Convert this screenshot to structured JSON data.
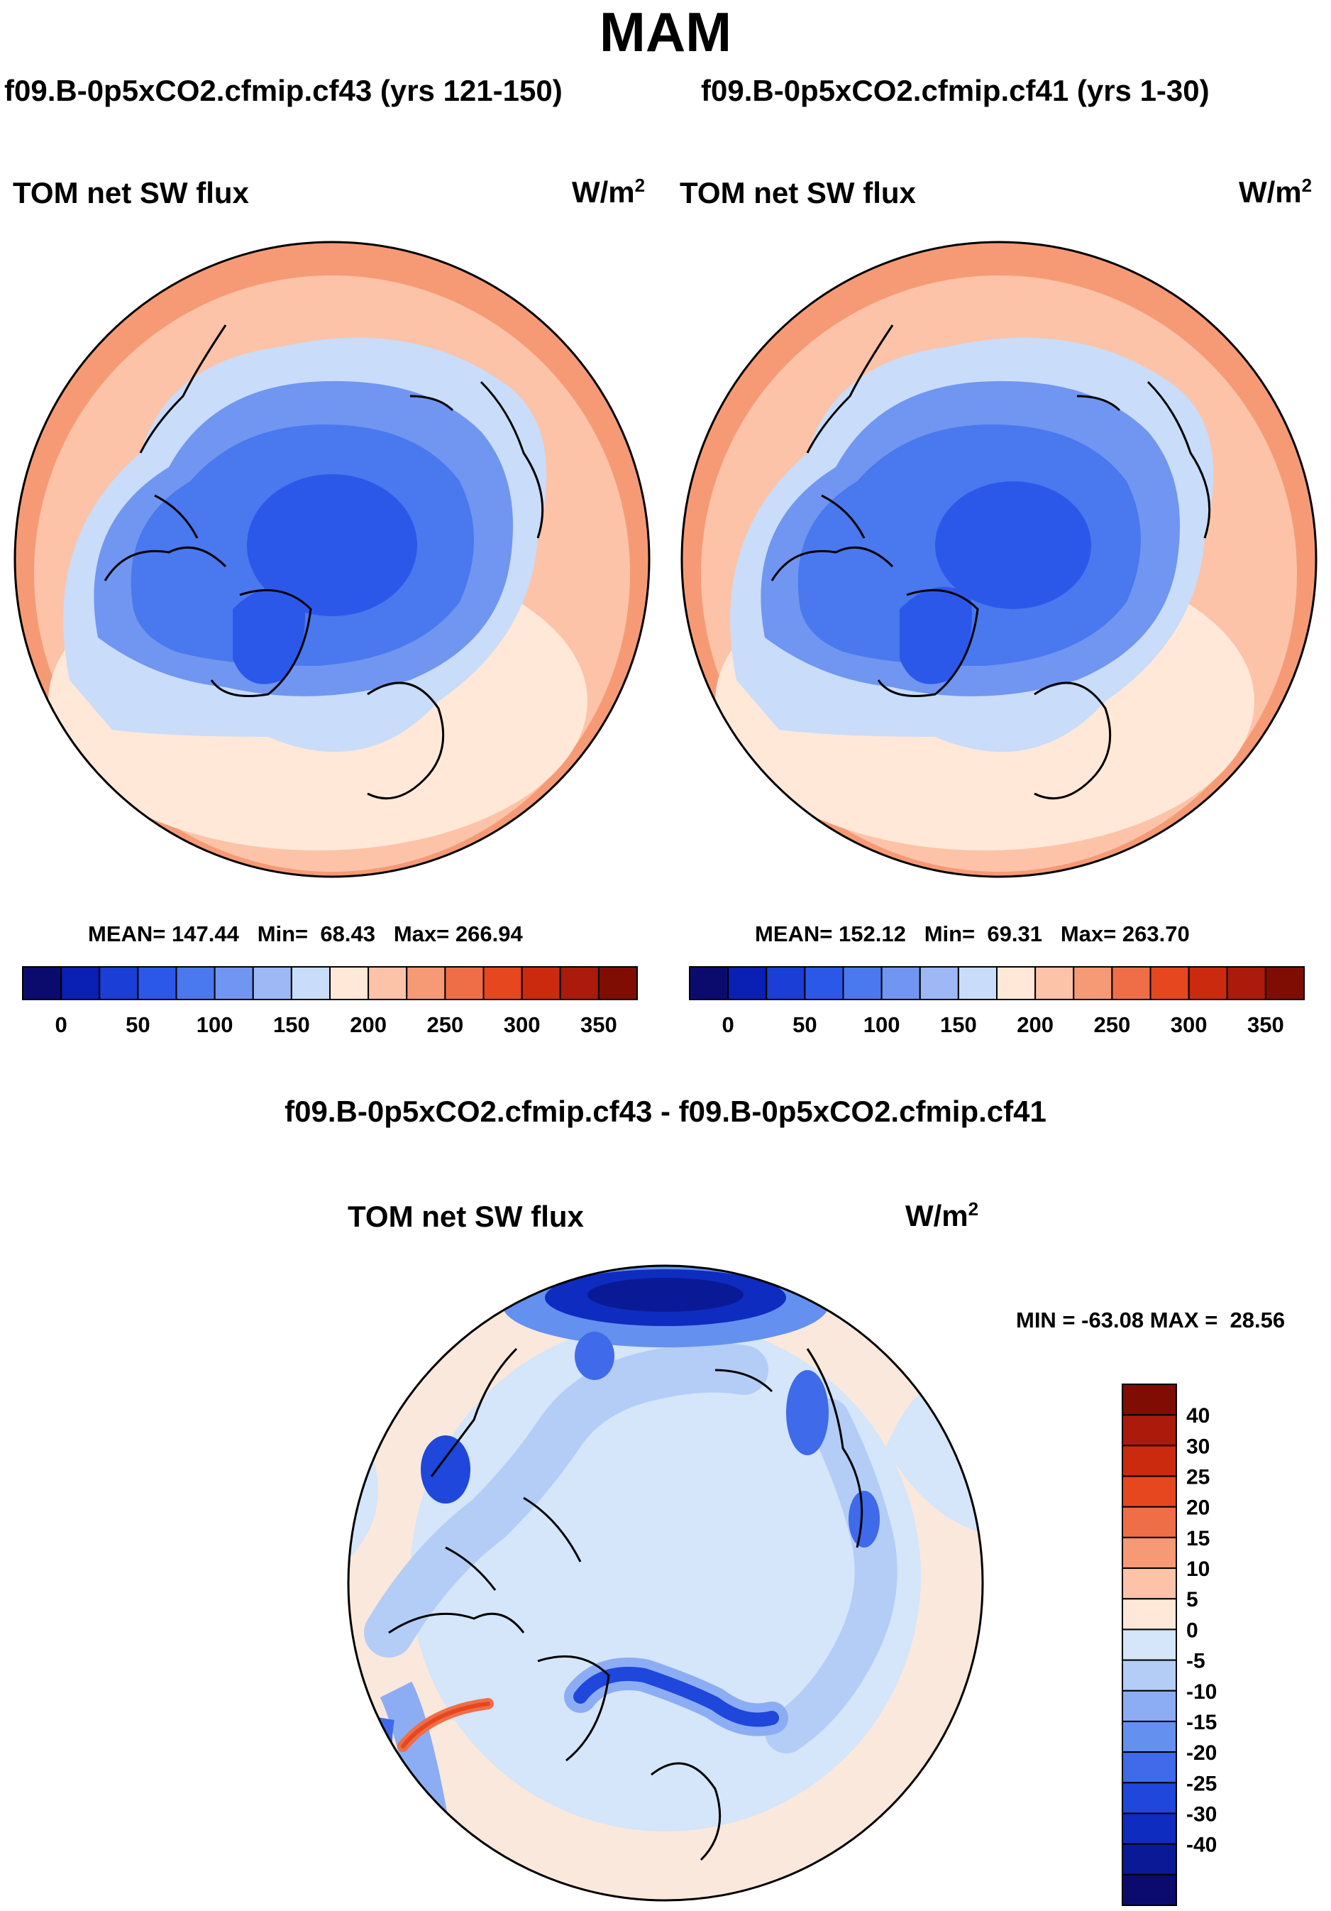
{
  "season": "MAM",
  "panels": [
    {
      "case_title": "f09.B-0p5xCO2.cfmip.cf43 (yrs 121-150)",
      "variable": "TOM net SW flux",
      "units": "W/m",
      "units_sup": "2",
      "stats": {
        "mean_label": "MEAN=",
        "mean": "147.44",
        "min_label": "Min=",
        "min": "68.43",
        "max_label": "Max=",
        "max": "266.94"
      }
    },
    {
      "case_title": "f09.B-0p5xCO2.cfmip.cf41 (yrs 1-30)",
      "variable": "TOM net SW flux",
      "units": "W/m",
      "units_sup": "2",
      "stats": {
        "mean_label": "MEAN=",
        "mean": "152.12",
        "min_label": "Min=",
        "min": "69.31",
        "max_label": "Max=",
        "max": "263.70"
      }
    }
  ],
  "colorbar": {
    "colors": [
      "#0b0b6e",
      "#0a1fb4",
      "#1a3ed6",
      "#2c58ea",
      "#4a78ee",
      "#7096f1",
      "#9db8f5",
      "#c9dcf9",
      "#ffe8d8",
      "#fcc3a8",
      "#f69a76",
      "#ef6e48",
      "#e6471f",
      "#cc2a0f",
      "#ab1a0a",
      "#7f0d04"
    ],
    "ticks": [
      "0",
      "50",
      "100",
      "150",
      "200",
      "250",
      "300",
      "350"
    ]
  },
  "diff": {
    "title": "f09.B-0p5xCO2.cfmip.cf43 - f09.B-0p5xCO2.cfmip.cf41",
    "variable": "TOM net SW flux",
    "units": "W/m",
    "units_sup": "2",
    "minmax": {
      "min_label": "MIN =",
      "min": "-63.08",
      "max_label": "MAX =",
      "max": "28.56"
    },
    "colorbar": {
      "colors": [
        "#7f0d04",
        "#ab1a0a",
        "#cc2a0f",
        "#e6471f",
        "#ef6e48",
        "#f69a76",
        "#fcc3a8",
        "#ffe8d8",
        "#d5e5fa",
        "#b3cdf6",
        "#8cadf3",
        "#6490ef",
        "#3f6aea",
        "#1f47dc",
        "#0f2cc0",
        "#0a1a96",
        "#0b0b6e"
      ],
      "labels": [
        "40",
        "30",
        "25",
        "20",
        "15",
        "10",
        "5",
        "0",
        "-5",
        "-10",
        "-15",
        "-20",
        "-25",
        "-30",
        "-40"
      ]
    }
  }
}
